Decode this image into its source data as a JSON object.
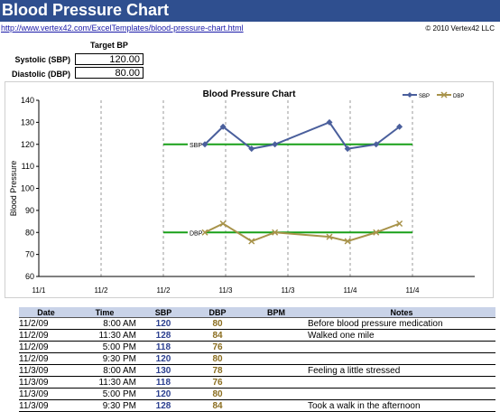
{
  "header": {
    "title": "Blood Pressure Chart",
    "url": "http://www.vertex42.com/ExcelTemplates/blood-pressure-chart.html",
    "copyright": "© 2010 Vertex42 LLC"
  },
  "target": {
    "heading": "Target BP",
    "systolic_label": "Systolic (SBP)",
    "systolic_value": "120.00",
    "diastolic_label": "Diastolic (DBP)",
    "diastolic_value": "80.00"
  },
  "colors": {
    "sbp": "#4a5f9c",
    "dbp": "#a8934a",
    "target": "#19a019",
    "header_bg": "#2f4f8f"
  },
  "chart_data": {
    "type": "line",
    "title": "Blood Pressure Chart",
    "ylabel": "Blood Pressure",
    "xlabel": "",
    "ylim": [
      60,
      140
    ],
    "yticks": [
      60,
      70,
      80,
      90,
      100,
      110,
      120,
      130,
      140
    ],
    "xlim": [
      "11/1/09 00:00",
      "11/4/09 12:00"
    ],
    "xticks": [
      "11/1",
      "11/2",
      "11/2",
      "11/3",
      "11/3",
      "11/4",
      "11/4"
    ],
    "x": [
      "11/2/09 8:00 AM",
      "11/2/09 11:30 AM",
      "11/2/09 5:00 PM",
      "11/2/09 9:30 PM",
      "11/3/09 8:00 AM",
      "11/3/09 11:30 AM",
      "11/3/09 5:00 PM",
      "11/3/09 9:30 PM"
    ],
    "series": [
      {
        "name": "SBP",
        "values": [
          120,
          128,
          118,
          120,
          130,
          118,
          120,
          128
        ]
      },
      {
        "name": "DBP",
        "values": [
          80,
          84,
          76,
          80,
          78,
          76,
          80,
          84
        ]
      }
    ],
    "target_lines": [
      {
        "label": "SBP",
        "value": 120
      },
      {
        "label": "DBP",
        "value": 80
      }
    ],
    "grid": "vertical dashed",
    "legend": "top-right"
  },
  "table": {
    "headers": [
      "Date",
      "Time",
      "SBP",
      "DBP",
      "BPM",
      "Notes"
    ],
    "rows": [
      {
        "date": "11/2/09",
        "time": "8:00 AM",
        "sbp": "120",
        "dbp": "80",
        "bpm": "",
        "notes": "Before blood pressure medication"
      },
      {
        "date": "11/2/09",
        "time": "11:30 AM",
        "sbp": "128",
        "dbp": "84",
        "bpm": "",
        "notes": "Walked one mile"
      },
      {
        "date": "11/2/09",
        "time": "5:00 PM",
        "sbp": "118",
        "dbp": "76",
        "bpm": "",
        "notes": ""
      },
      {
        "date": "11/2/09",
        "time": "9:30 PM",
        "sbp": "120",
        "dbp": "80",
        "bpm": "",
        "notes": ""
      },
      {
        "date": "11/3/09",
        "time": "8:00 AM",
        "sbp": "130",
        "dbp": "78",
        "bpm": "",
        "notes": "Feeling a little stressed"
      },
      {
        "date": "11/3/09",
        "time": "11:30 AM",
        "sbp": "118",
        "dbp": "76",
        "bpm": "",
        "notes": ""
      },
      {
        "date": "11/3/09",
        "time": "5:00 PM",
        "sbp": "120",
        "dbp": "80",
        "bpm": "",
        "notes": ""
      },
      {
        "date": "11/3/09",
        "time": "9:30 PM",
        "sbp": "128",
        "dbp": "84",
        "bpm": "",
        "notes": "Took a walk in the afternoon"
      }
    ]
  }
}
